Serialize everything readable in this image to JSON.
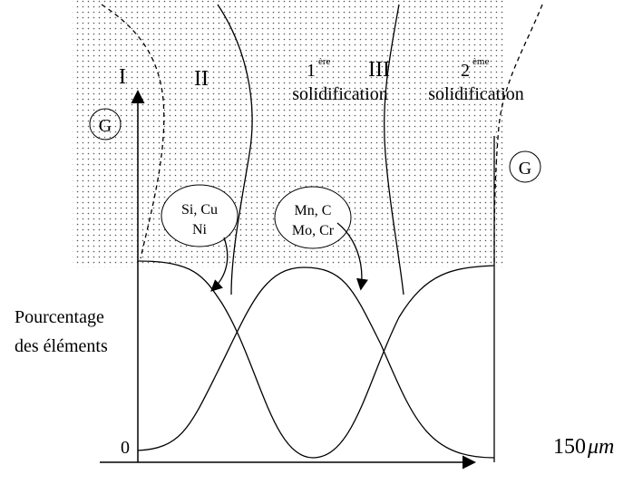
{
  "regions": [
    {
      "label": "I"
    },
    {
      "label": "II"
    },
    {
      "label": "III"
    }
  ],
  "solidification_1": {
    "order": "1",
    "suffix": "ère",
    "label": "solidification"
  },
  "solidification_2": {
    "order": "2",
    "suffix": "ème",
    "label": "solidification"
  },
  "grains": [
    "G",
    "G"
  ],
  "element_groups": [
    {
      "line1": "Si, Cu",
      "line2": "Ni"
    },
    {
      "line1": "Mn, C",
      "line2": "Mo, Cr"
    }
  ],
  "y_axis": {
    "line1": "Pourcentage",
    "line2": "des éléments",
    "origin": "0"
  },
  "x_axis": {
    "end": "150",
    "unit": "μm"
  }
}
